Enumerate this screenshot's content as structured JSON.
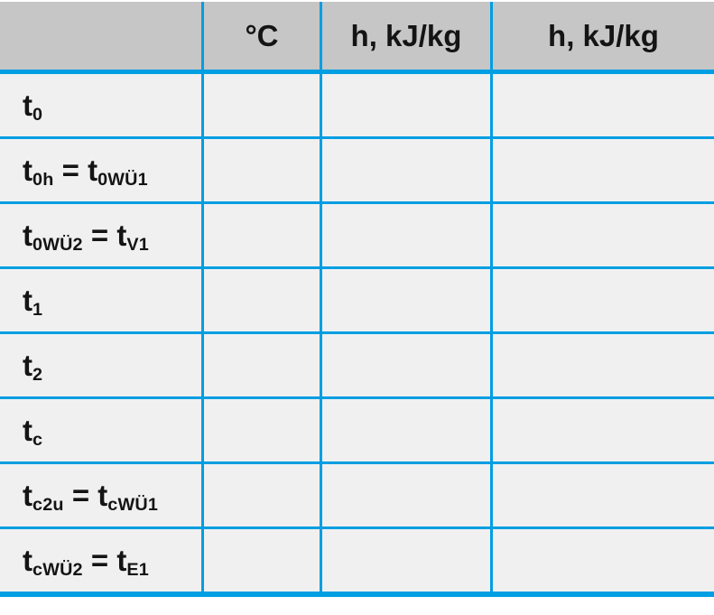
{
  "colors": {
    "grid_accent": "#009ee2",
    "header_bg": "#c6c6c6",
    "row_bg": "#f0f0f1",
    "text": "#141414"
  },
  "table": {
    "headers": [
      {
        "label": ""
      },
      {
        "label": "°C"
      },
      {
        "label": "h, kJ/kg"
      },
      {
        "label": "h, kJ/kg"
      }
    ],
    "rows": [
      {
        "label_segments": [
          [
            "t",
            "t"
          ],
          [
            "sub",
            "0"
          ]
        ],
        "values": [
          "",
          "",
          ""
        ]
      },
      {
        "label_segments": [
          [
            "t",
            "t"
          ],
          [
            "sub",
            "0h"
          ],
          [
            "t",
            " = "
          ],
          [
            "t",
            "t"
          ],
          [
            "sub",
            "0WÜ1"
          ]
        ],
        "values": [
          "",
          "",
          ""
        ]
      },
      {
        "label_segments": [
          [
            "t",
            "t"
          ],
          [
            "sub",
            "0WÜ2"
          ],
          [
            "t",
            " = "
          ],
          [
            "t",
            "t"
          ],
          [
            "sub",
            "V1"
          ]
        ],
        "values": [
          "",
          "",
          ""
        ]
      },
      {
        "label_segments": [
          [
            "t",
            "t"
          ],
          [
            "sub",
            "1"
          ]
        ],
        "values": [
          "",
          "",
          ""
        ]
      },
      {
        "label_segments": [
          [
            "t",
            "t"
          ],
          [
            "sub",
            "2"
          ]
        ],
        "values": [
          "",
          "",
          ""
        ]
      },
      {
        "label_segments": [
          [
            "t",
            "t"
          ],
          [
            "sub",
            "c"
          ]
        ],
        "values": [
          "",
          "",
          ""
        ]
      },
      {
        "label_segments": [
          [
            "t",
            "t"
          ],
          [
            "sub",
            "c2u"
          ],
          [
            "t",
            " = "
          ],
          [
            "t",
            "t"
          ],
          [
            "sub",
            "cWÜ1"
          ]
        ],
        "values": [
          "",
          "",
          ""
        ]
      },
      {
        "label_segments": [
          [
            "t",
            "t"
          ],
          [
            "sub",
            "cWÜ2"
          ],
          [
            "t",
            " = "
          ],
          [
            "t",
            "t"
          ],
          [
            "sub",
            "E1"
          ]
        ],
        "values": [
          "",
          "",
          ""
        ]
      }
    ]
  }
}
